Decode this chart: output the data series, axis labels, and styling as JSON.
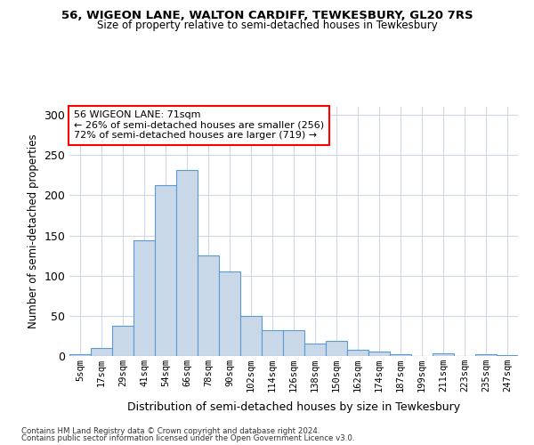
{
  "title1": "56, WIGEON LANE, WALTON CARDIFF, TEWKESBURY, GL20 7RS",
  "title2": "Size of property relative to semi-detached houses in Tewkesbury",
  "xlabel": "Distribution of semi-detached houses by size in Tewkesbury",
  "ylabel": "Number of semi-detached properties",
  "footer1": "Contains HM Land Registry data © Crown copyright and database right 2024.",
  "footer2": "Contains public sector information licensed under the Open Government Licence v3.0.",
  "annotation_title": "56 WIGEON LANE: 71sqm",
  "annotation_line1": "← 26% of semi-detached houses are smaller (256)",
  "annotation_line2": "72% of semi-detached houses are larger (719) →",
  "bar_color": "#c8d8e8",
  "bar_edge_color": "#5b9bd5",
  "bar_categories": [
    "5sqm",
    "17sqm",
    "29sqm",
    "41sqm",
    "54sqm",
    "66sqm",
    "78sqm",
    "90sqm",
    "102sqm",
    "114sqm",
    "126sqm",
    "138sqm",
    "150sqm",
    "162sqm",
    "174sqm",
    "187sqm",
    "199sqm",
    "211sqm",
    "223sqm",
    "235sqm",
    "247sqm"
  ],
  "bar_values": [
    2,
    10,
    38,
    144,
    213,
    231,
    125,
    105,
    50,
    32,
    32,
    16,
    19,
    8,
    6,
    2,
    0,
    3,
    0,
    2,
    1
  ],
  "ylim": [
    0,
    310
  ],
  "yticks": [
    0,
    50,
    100,
    150,
    200,
    250,
    300
  ],
  "background_color": "#ffffff",
  "grid_color": "#d0d8e8"
}
